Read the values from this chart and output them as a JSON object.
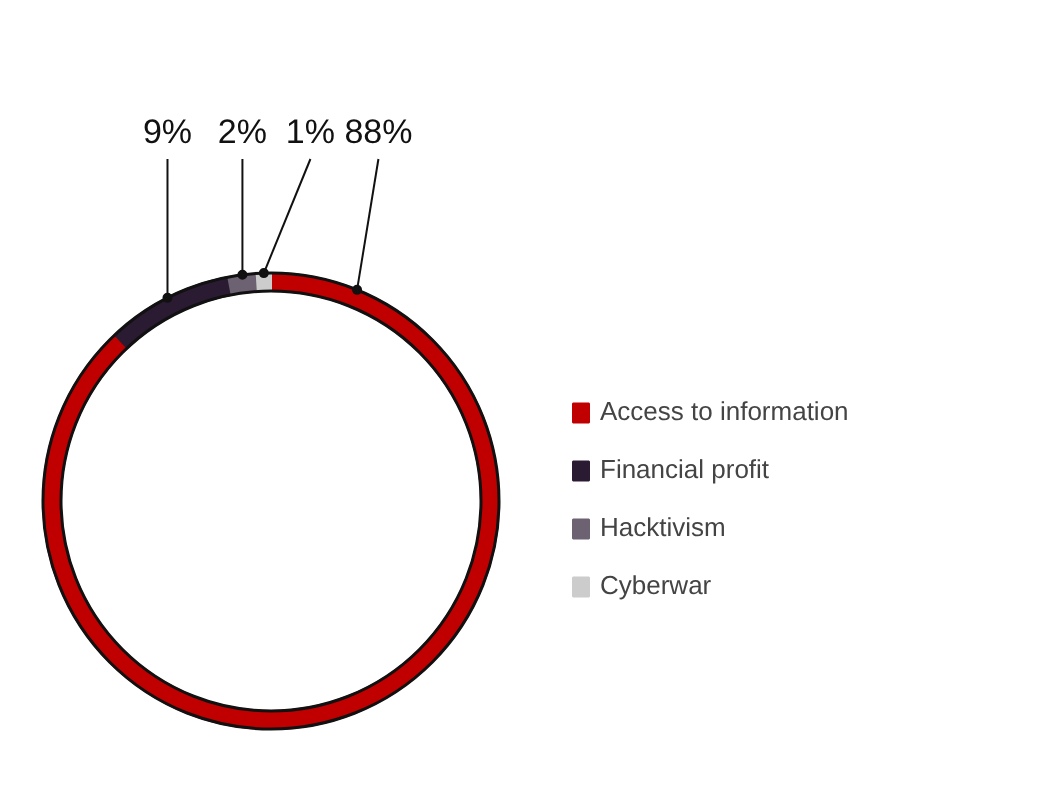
{
  "chart_data": {
    "type": "donut",
    "categories": [
      "Access to information",
      "Financial profit",
      "Hacktivism",
      "Cyberwar"
    ],
    "values": [
      88,
      9,
      2,
      1
    ],
    "colors": [
      "#c00000",
      "#2a1b33",
      "#6d6272",
      "#cccccc"
    ],
    "value_labels": [
      "88%",
      "9%",
      "2%",
      "1%"
    ],
    "legend": "right"
  }
}
